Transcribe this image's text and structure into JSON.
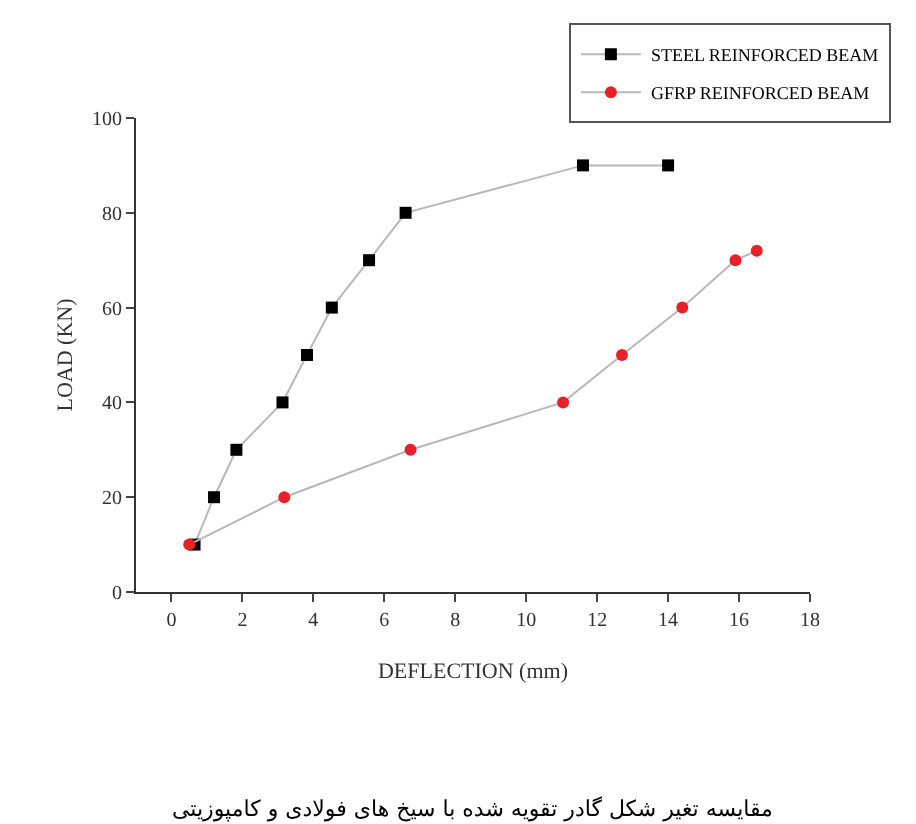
{
  "chart_data": {
    "type": "line",
    "xlabel": "DEFLECTION (mm)",
    "ylabel": "LOAD (KN)",
    "xlim": [
      -1,
      18
    ],
    "xticks": [
      0,
      2,
      4,
      6,
      8,
      10,
      12,
      14,
      16,
      18
    ],
    "ylim": [
      0,
      100
    ],
    "yticks": [
      0,
      20,
      40,
      60,
      80,
      100
    ],
    "grid": false,
    "legend": "top right",
    "annotations": [
      "مقایسه تغیر شکل گادر تقویه شده با سیخ های فولادی و کامپوزیتی"
    ],
    "series": [
      {
        "name": "STEEL REINFORCED BEAM",
        "color": "#000000",
        "marker": "square",
        "x": [
          0.65,
          1.2,
          1.83,
          3.13,
          3.82,
          4.52,
          5.57,
          6.6,
          11.6,
          14.0
        ],
        "values": [
          10,
          20,
          30,
          40,
          50,
          60,
          70,
          80,
          90,
          90
        ]
      },
      {
        "name": "GFRP REINFORCED BEAM",
        "color": "#e8202a",
        "marker": "circle",
        "x": [
          0.5,
          3.18,
          6.74,
          11.04,
          12.7,
          14.4,
          15.9,
          16.5
        ],
        "values": [
          10,
          20,
          30,
          40,
          50,
          60,
          70,
          72
        ]
      }
    ]
  }
}
